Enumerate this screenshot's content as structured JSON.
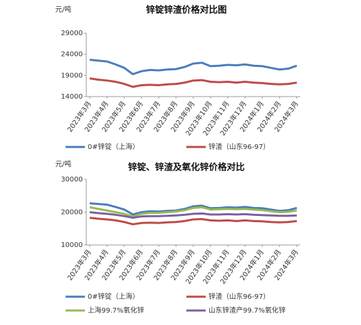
{
  "chart_data": [
    {
      "type": "line",
      "title": "锌锭锌渣价格对比图",
      "y_unit": "元/吨",
      "categories": [
        "2023年3月",
        null,
        "2023年4月",
        null,
        "2023年5月",
        null,
        "2023年6月",
        null,
        "2023年7月",
        null,
        "2023年8月",
        null,
        "2023年9月",
        null,
        "2023年10月",
        null,
        "2023年11月",
        null,
        "2023年12月",
        null,
        "2024年1月",
        null,
        "2024年2月",
        null,
        "2024年3月"
      ],
      "series": [
        {
          "name": "0#锌锭（上海）",
          "color": "#4a7ebb",
          "values": [
            22700,
            22500,
            22300,
            21600,
            20800,
            19300,
            20000,
            20300,
            20200,
            20400,
            20500,
            21000,
            21800,
            22000,
            21200,
            21300,
            21500,
            21400,
            21600,
            21300,
            21200,
            20800,
            20400,
            20600,
            21300
          ]
        },
        {
          "name": "锌渣（山东96-97）",
          "color": "#be4b48",
          "values": [
            18300,
            18000,
            17800,
            17500,
            17000,
            16300,
            16700,
            16800,
            16700,
            16900,
            17000,
            17300,
            17800,
            17900,
            17500,
            17400,
            17500,
            17300,
            17500,
            17300,
            17200,
            17000,
            16900,
            17000,
            17300
          ]
        }
      ],
      "ylim": [
        14000,
        29000
      ],
      "yticks": [
        14000,
        19000,
        24000,
        29000
      ],
      "grid": false
    },
    {
      "type": "line",
      "title": "锌锭、锌渣及氧化锌价格对比",
      "y_unit": "元/吨",
      "categories": [
        "2023年3月",
        null,
        "2023年4月",
        null,
        "2023年5月",
        null,
        "2023年6月",
        null,
        "2023年7月",
        null,
        "2023年8月",
        null,
        "2023年9月",
        null,
        "2023年10月",
        null,
        "2023年11月",
        null,
        "2023年12月",
        null,
        "2024年1月",
        null,
        "2024年2月",
        null,
        "2024年3月"
      ],
      "series": [
        {
          "name": "0#锌锭（上海）",
          "color": "#4a7ebb",
          "values": [
            22700,
            22500,
            22300,
            21600,
            20800,
            19300,
            20000,
            20300,
            20200,
            20400,
            20500,
            21000,
            21800,
            22000,
            21200,
            21300,
            21500,
            21400,
            21600,
            21300,
            21200,
            20800,
            20400,
            20600,
            21300
          ]
        },
        {
          "name": "锌渣（山东96-97）",
          "color": "#be4b48",
          "values": [
            18300,
            18000,
            17800,
            17500,
            17000,
            16300,
            16700,
            16800,
            16700,
            16900,
            17000,
            17300,
            17800,
            17900,
            17500,
            17400,
            17500,
            17300,
            17500,
            17300,
            17200,
            17000,
            16900,
            17000,
            17300
          ]
        },
        {
          "name": "上海99.7%氧化锌",
          "color": "#98b954",
          "values": [
            21500,
            21000,
            20500,
            20000,
            19500,
            18700,
            19500,
            19800,
            19800,
            20000,
            20200,
            20600,
            21300,
            21500,
            20800,
            20900,
            21000,
            20900,
            21000,
            20800,
            20600,
            20300,
            20000,
            20100,
            20500
          ]
        },
        {
          "name": "山东锌渣产99.7%氧化锌",
          "color": "#7d60a0",
          "values": [
            20000,
            19700,
            19500,
            19200,
            18800,
            18300,
            18700,
            18800,
            18800,
            18900,
            19000,
            19200,
            19500,
            19600,
            19300,
            19300,
            19400,
            19300,
            19400,
            19200,
            19100,
            19000,
            18900,
            18900,
            19000
          ]
        }
      ],
      "ylim": [
        10000,
        30000
      ],
      "yticks": [
        10000,
        20000,
        30000
      ],
      "grid": false
    }
  ]
}
